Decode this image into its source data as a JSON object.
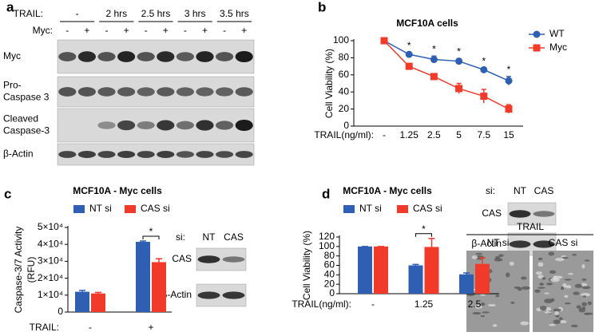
{
  "chart_data": [
    {
      "type": "line",
      "panel": "b",
      "title": "MCF10A cells",
      "ylabel": [
        "Cell Viability (%)"
      ],
      "xlabel": "TRAIL(ng/ml):",
      "categories": [
        "-",
        "1.25",
        "2.5",
        "5",
        "7.5",
        "15"
      ],
      "series": [
        {
          "name": "WT",
          "color": "#2f5fb3",
          "marker": "circle",
          "values": [
            100,
            84,
            78,
            76,
            66,
            53
          ],
          "errors": [
            1,
            2,
            4,
            3,
            2,
            5
          ]
        },
        {
          "name": "Myc",
          "color": "#f23a2a",
          "marker": "square",
          "values": [
            100,
            70,
            58,
            44,
            35,
            20
          ],
          "errors": [
            1,
            2,
            2,
            6,
            8,
            5
          ]
        }
      ],
      "significance": [
        null,
        "*",
        "*",
        "*",
        "*",
        "*"
      ],
      "ylim": [
        0,
        100
      ],
      "yticks": [
        0,
        20,
        40,
        60,
        80,
        100
      ],
      "legend": "upper right"
    },
    {
      "type": "bar",
      "panel": "c",
      "title": "MCF10A - Myc cells",
      "ylabel": [
        "Caspase-3/7 Activity",
        "(RFU)"
      ],
      "xlabel": "TRAIL:",
      "categories": [
        "-",
        "+"
      ],
      "series": [
        {
          "name": "NT si",
          "color": "#2f5fb3",
          "values": [
            12000,
            41500
          ],
          "errors": [
            800,
            500
          ]
        },
        {
          "name": "CAS si",
          "color": "#f23a2a",
          "values": [
            11000,
            29500
          ],
          "errors": [
            600,
            2000
          ]
        }
      ],
      "significance": [
        null,
        "*"
      ],
      "ylim": [
        0,
        50000
      ],
      "yticks": [
        0,
        {
          "value": 10000,
          "label": "1×10⁴"
        },
        {
          "value": 20000,
          "label": "2×10⁴"
        },
        {
          "value": 30000,
          "label": "3×10⁴"
        },
        {
          "value": 40000,
          "label": "4×10⁴"
        },
        {
          "value": 50000,
          "label": "5×10⁴"
        }
      ],
      "legend": "top"
    },
    {
      "type": "bar",
      "panel": "d",
      "title": "MCF10A - Myc cells",
      "ylabel": [
        "Cell Viability (%)"
      ],
      "xlabel": "TRAIL(ng/ml):",
      "categories": [
        "-",
        "1.25",
        "2.5"
      ],
      "series": [
        {
          "name": "NT si",
          "color": "#2f5fb3",
          "values": [
            100,
            60,
            41
          ],
          "errors": [
            0,
            2,
            3
          ]
        },
        {
          "name": "CAS si",
          "color": "#f23a2a",
          "values": [
            100,
            99,
            63
          ],
          "errors": [
            0,
            18,
            13
          ]
        }
      ],
      "significance": [
        null,
        "*",
        null
      ],
      "ylim": [
        0,
        120
      ],
      "yticks": [
        0,
        20,
        40,
        60,
        80,
        100,
        120
      ],
      "legend": "top"
    }
  ],
  "blot_a": {
    "panel": "a",
    "trail_label": "TRAIL:",
    "trail_groups": [
      "-",
      "2 hrs",
      "2.5 hrs",
      "3 hrs",
      "3.5 hrs"
    ],
    "myc_label": "Myc:",
    "myc_lanes": [
      "-",
      "+",
      "-",
      "+",
      "-",
      "+",
      "-",
      "+",
      "-",
      "+"
    ],
    "rows": [
      [
        "Myc"
      ],
      [
        "Pro-",
        "Caspase 3"
      ],
      [
        "Cleaved",
        "Caspase-3"
      ],
      [
        "β-Actin"
      ]
    ]
  },
  "blot_c": {
    "si_label": "si:",
    "lanes": [
      "NT",
      "CAS"
    ],
    "rows": [
      "CAS",
      "β-Actin"
    ]
  },
  "blot_d": {
    "si_label": "si:",
    "lanes": [
      "NT",
      "CAS"
    ],
    "rows": [
      "CAS",
      "β-Actin"
    ]
  },
  "micrograph_d": {
    "title": "TRAIL",
    "panels": [
      "NT si",
      "CAS si"
    ]
  }
}
